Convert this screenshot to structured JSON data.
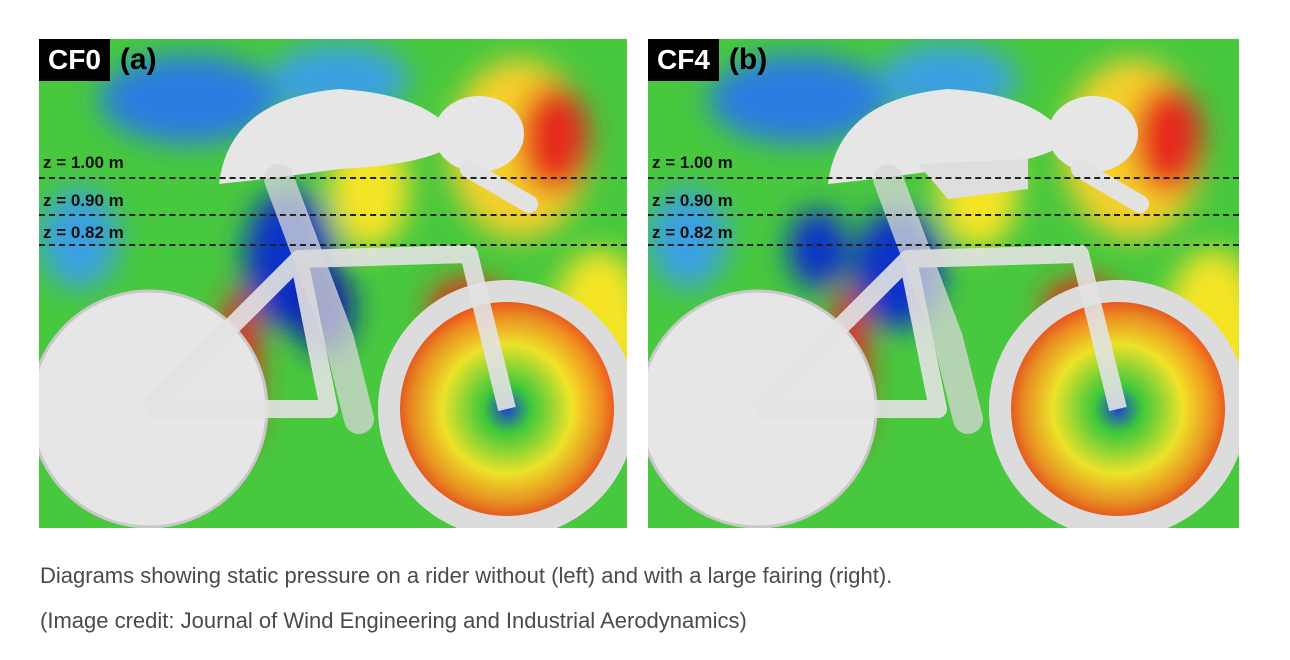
{
  "panels": [
    {
      "code": "CF0",
      "sub": "(a)",
      "levels": [
        "z = 1.00 m",
        "z = 0.90 m",
        "z = 0.82 m"
      ]
    },
    {
      "code": "CF4",
      "sub": "(b)",
      "levels": [
        "z = 1.00 m",
        "z = 0.90 m",
        "z = 0.82 m"
      ]
    }
  ],
  "caption": {
    "line1": "Diagrams showing static pressure on a rider without (left) and with a large fairing (right).",
    "line2": "(Image credit: Journal of Wind Engineering and Industrial Aerodynamics)"
  },
  "colors": {
    "low": "#1030c8",
    "mid": "#3cc83c",
    "high": "#e8281e",
    "rider": "#e8e8e8"
  }
}
